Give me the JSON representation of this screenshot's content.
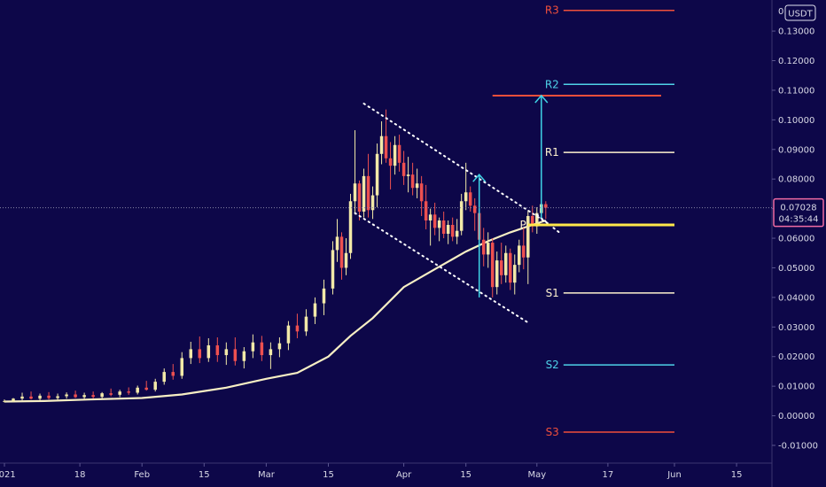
{
  "chart_data": {
    "type": "candlestick",
    "currency": "USDT",
    "last_price_label": "0.07028",
    "countdown": "04:35:44",
    "colors": {
      "background": "#0d0749",
      "up_candle": "#f2e9a8",
      "down_candle": "#ee5050",
      "moving_average": "#f7efc4",
      "channel": "#ffffff",
      "arrow": "#3fd4e6",
      "resistance": "#f04f3b",
      "r2": "#4ed2e8",
      "neutral_level": "#fff3cf",
      "pivot_line": "#ffe84a",
      "last_price": "#f06ba3"
    },
    "y_axis": {
      "range": [
        -0.0115,
        0.1405
      ],
      "ticks": [
        "0.13000",
        "0.12000",
        "0.11000",
        "0.10000",
        "0.09000",
        "0.08000",
        "0.07000",
        "0.06000",
        "0.05000",
        "0.04000",
        "0.03000",
        "0.02000",
        "0.01000",
        "0.00000",
        "-0.01000"
      ],
      "top_partial_label": "0"
    },
    "x_axis": {
      "labels": [
        {
          "date": "2021-01-01",
          "text": "2021"
        },
        {
          "date": "2021-01-18",
          "text": "18"
        },
        {
          "date": "2021-02-01",
          "text": "Feb"
        },
        {
          "date": "2021-02-15",
          "text": "15"
        },
        {
          "date": "2021-03-01",
          "text": "Mar"
        },
        {
          "date": "2021-03-15",
          "text": "15"
        },
        {
          "date": "2021-04-01",
          "text": "Apr"
        },
        {
          "date": "2021-04-15",
          "text": "15"
        },
        {
          "date": "2021-05-01",
          "text": "May"
        },
        {
          "date": "2021-05-17",
          "text": "17"
        },
        {
          "date": "2021-06-01",
          "text": "Jun"
        },
        {
          "date": "2021-06-15",
          "text": "15"
        }
      ]
    },
    "pivot_levels": [
      {
        "label": "R3",
        "value": 0.137,
        "start": "2021-05-07",
        "end": "2021-06-01",
        "color": "#f04f3b"
      },
      {
        "label": "R2",
        "value": 0.112,
        "start": "2021-05-07",
        "end": "2021-06-01",
        "color": "#4ed2e8"
      },
      {
        "label": "R1",
        "value": 0.089,
        "start": "2021-05-07",
        "end": "2021-06-01",
        "color": "#fff3cf"
      },
      {
        "label": "P",
        "value": 0.0645,
        "start": "2021-04-29",
        "end": "2021-06-01",
        "color": "#ffe84a"
      },
      {
        "label": "S1",
        "value": 0.0415,
        "start": "2021-05-07",
        "end": "2021-06-01",
        "color": "#fff3cf"
      },
      {
        "label": "S2",
        "value": 0.0172,
        "start": "2021-05-07",
        "end": "2021-06-01",
        "color": "#4ed2e8"
      },
      {
        "label": "S3",
        "value": -0.0055,
        "start": "2021-05-07",
        "end": "2021-06-01",
        "color": "#f04f3b"
      }
    ],
    "target_line": {
      "value": 0.1082,
      "start": "2021-04-21",
      "end": "2021-05-29"
    },
    "channel": {
      "upper": [
        {
          "date": "2021-03-23",
          "value": 0.1055
        },
        {
          "date": "2021-05-04",
          "value": 0.0645
        }
      ],
      "lower": [
        {
          "date": "2021-03-21",
          "value": 0.0685
        },
        {
          "date": "2021-04-29",
          "value": 0.0315
        }
      ],
      "breakout": [
        {
          "date": "2021-05-01",
          "value": 0.068
        },
        {
          "date": "2021-05-06",
          "value": 0.062
        }
      ]
    },
    "arrows": [
      {
        "date": "2021-04-18",
        "from": 0.04,
        "to": 0.0815
      },
      {
        "date": "2021-05-02",
        "from": 0.0668,
        "to": 0.1082
      }
    ],
    "moving_average": [
      [
        "2021-01-01",
        0.0048
      ],
      [
        "2021-01-10",
        0.005
      ],
      [
        "2021-01-20",
        0.0055
      ],
      [
        "2021-02-01",
        0.006
      ],
      [
        "2021-02-10",
        0.0072
      ],
      [
        "2021-02-20",
        0.0095
      ],
      [
        "2021-03-01",
        0.0125
      ],
      [
        "2021-03-08",
        0.0145
      ],
      [
        "2021-03-15",
        0.02
      ],
      [
        "2021-03-20",
        0.027
      ],
      [
        "2021-03-25",
        0.033
      ],
      [
        "2021-04-01",
        0.0435
      ],
      [
        "2021-04-08",
        0.0495
      ],
      [
        "2021-04-15",
        0.0555
      ],
      [
        "2021-04-20",
        0.059
      ],
      [
        "2021-04-25",
        0.062
      ],
      [
        "2021-04-30",
        0.0645
      ],
      [
        "2021-05-03",
        0.066
      ]
    ],
    "candles": [
      [
        "2021-01-01",
        0.0048,
        0.0055,
        0.0045,
        0.005
      ],
      [
        "2021-01-03",
        0.005,
        0.006,
        0.0046,
        0.0058
      ],
      [
        "2021-01-05",
        0.0058,
        0.0078,
        0.0052,
        0.0065
      ],
      [
        "2021-01-07",
        0.0065,
        0.0082,
        0.0055,
        0.0058
      ],
      [
        "2021-01-09",
        0.0058,
        0.0075,
        0.0052,
        0.0068
      ],
      [
        "2021-01-11",
        0.0068,
        0.008,
        0.0055,
        0.006
      ],
      [
        "2021-01-13",
        0.006,
        0.0075,
        0.0052,
        0.0066
      ],
      [
        "2021-01-15",
        0.0066,
        0.0079,
        0.0058,
        0.0072
      ],
      [
        "2021-01-17",
        0.0072,
        0.0085,
        0.006,
        0.0063
      ],
      [
        "2021-01-19",
        0.0063,
        0.0078,
        0.0055,
        0.007
      ],
      [
        "2021-01-21",
        0.007,
        0.0082,
        0.0058,
        0.0064
      ],
      [
        "2021-01-23",
        0.0064,
        0.008,
        0.0058,
        0.0076
      ],
      [
        "2021-01-25",
        0.0076,
        0.0092,
        0.0066,
        0.0071
      ],
      [
        "2021-01-27",
        0.0071,
        0.0088,
        0.0063,
        0.0082
      ],
      [
        "2021-01-29",
        0.0082,
        0.0096,
        0.0071,
        0.0078
      ],
      [
        "2021-01-31",
        0.0078,
        0.0102,
        0.0072,
        0.0095
      ],
      [
        "2021-02-02",
        0.0095,
        0.0118,
        0.0085,
        0.0088
      ],
      [
        "2021-02-04",
        0.0088,
        0.0125,
        0.0082,
        0.0115
      ],
      [
        "2021-02-06",
        0.0115,
        0.016,
        0.0105,
        0.0148
      ],
      [
        "2021-02-08",
        0.0148,
        0.0175,
        0.0122,
        0.0135
      ],
      [
        "2021-02-10",
        0.0135,
        0.0215,
        0.0125,
        0.0195
      ],
      [
        "2021-02-12",
        0.0195,
        0.025,
        0.0175,
        0.0225
      ],
      [
        "2021-02-14",
        0.0225,
        0.0268,
        0.0178,
        0.0195
      ],
      [
        "2021-02-16",
        0.0195,
        0.0262,
        0.0182,
        0.0238
      ],
      [
        "2021-02-18",
        0.0238,
        0.0265,
        0.0182,
        0.0205
      ],
      [
        "2021-02-20",
        0.0205,
        0.0248,
        0.0172,
        0.0225
      ],
      [
        "2021-02-22",
        0.0225,
        0.0265,
        0.017,
        0.0185
      ],
      [
        "2021-02-24",
        0.0185,
        0.0232,
        0.016,
        0.0218
      ],
      [
        "2021-02-26",
        0.0218,
        0.0275,
        0.0195,
        0.0248
      ],
      [
        "2021-02-28",
        0.0248,
        0.027,
        0.0185,
        0.0205
      ],
      [
        "2021-03-02",
        0.0205,
        0.0248,
        0.0158,
        0.0225
      ],
      [
        "2021-03-04",
        0.0225,
        0.0265,
        0.0198,
        0.0245
      ],
      [
        "2021-03-06",
        0.0245,
        0.032,
        0.0222,
        0.0305
      ],
      [
        "2021-03-08",
        0.0305,
        0.0345,
        0.0262,
        0.0285
      ],
      [
        "2021-03-10",
        0.0285,
        0.036,
        0.027,
        0.0335
      ],
      [
        "2021-03-12",
        0.0335,
        0.04,
        0.031,
        0.038
      ],
      [
        "2021-03-14",
        0.038,
        0.046,
        0.034,
        0.043
      ],
      [
        "2021-03-16",
        0.043,
        0.059,
        0.041,
        0.056
      ],
      [
        "2021-03-17",
        0.056,
        0.0665,
        0.052,
        0.0605
      ],
      [
        "2021-03-18",
        0.0605,
        0.062,
        0.046,
        0.05
      ],
      [
        "2021-03-19",
        0.05,
        0.06,
        0.0475,
        0.055
      ],
      [
        "2021-03-20",
        0.055,
        0.075,
        0.053,
        0.0725
      ],
      [
        "2021-03-21",
        0.0725,
        0.0965,
        0.068,
        0.0785
      ],
      [
        "2021-03-22",
        0.0785,
        0.0795,
        0.066,
        0.069
      ],
      [
        "2021-03-23",
        0.069,
        0.0835,
        0.067,
        0.081
      ],
      [
        "2021-03-24",
        0.081,
        0.0885,
        0.067,
        0.0695
      ],
      [
        "2021-03-25",
        0.0695,
        0.0775,
        0.0665,
        0.0745
      ],
      [
        "2021-03-26",
        0.0745,
        0.092,
        0.0705,
        0.0885
      ],
      [
        "2021-03-27",
        0.0885,
        0.0995,
        0.085,
        0.0945
      ],
      [
        "2021-03-28",
        0.0945,
        0.1035,
        0.0855,
        0.087
      ],
      [
        "2021-03-29",
        0.087,
        0.0925,
        0.0765,
        0.0845
      ],
      [
        "2021-03-30",
        0.0845,
        0.0945,
        0.0815,
        0.0915
      ],
      [
        "2021-03-31",
        0.0915,
        0.095,
        0.0825,
        0.0855
      ],
      [
        "2021-04-01",
        0.0855,
        0.0895,
        0.078,
        0.081
      ],
      [
        "2021-04-02",
        0.081,
        0.0875,
        0.0755,
        0.0815
      ],
      [
        "2021-04-03",
        0.0815,
        0.0855,
        0.0745,
        0.077
      ],
      [
        "2021-04-04",
        0.077,
        0.0835,
        0.0735,
        0.0785
      ],
      [
        "2021-04-05",
        0.0785,
        0.081,
        0.0675,
        0.0725
      ],
      [
        "2021-04-06",
        0.0725,
        0.078,
        0.063,
        0.066
      ],
      [
        "2021-04-07",
        0.066,
        0.07,
        0.0575,
        0.068
      ],
      [
        "2021-04-08",
        0.068,
        0.072,
        0.061,
        0.0635
      ],
      [
        "2021-04-09",
        0.0635,
        0.067,
        0.059,
        0.066
      ],
      [
        "2021-04-10",
        0.066,
        0.069,
        0.06,
        0.0615
      ],
      [
        "2021-04-11",
        0.0615,
        0.066,
        0.058,
        0.0645
      ],
      [
        "2021-04-12",
        0.0645,
        0.067,
        0.059,
        0.0605
      ],
      [
        "2021-04-13",
        0.0605,
        0.0665,
        0.058,
        0.0625
      ],
      [
        "2021-04-14",
        0.0625,
        0.075,
        0.061,
        0.0725
      ],
      [
        "2021-04-15",
        0.0725,
        0.0855,
        0.0695,
        0.0755
      ],
      [
        "2021-04-16",
        0.0755,
        0.0775,
        0.069,
        0.071
      ],
      [
        "2021-04-17",
        0.071,
        0.0735,
        0.0625,
        0.0685
      ],
      [
        "2021-04-18",
        0.0685,
        0.0695,
        0.055,
        0.0595
      ],
      [
        "2021-04-19",
        0.0595,
        0.0635,
        0.0505,
        0.0545
      ],
      [
        "2021-04-20",
        0.0545,
        0.062,
        0.05,
        0.0585
      ],
      [
        "2021-04-21",
        0.0585,
        0.06,
        0.04,
        0.0435
      ],
      [
        "2021-04-22",
        0.0435,
        0.0555,
        0.041,
        0.0525
      ],
      [
        "2021-04-23",
        0.0525,
        0.0585,
        0.0445,
        0.0475
      ],
      [
        "2021-04-24",
        0.0475,
        0.0575,
        0.045,
        0.055
      ],
      [
        "2021-04-25",
        0.055,
        0.0565,
        0.0425,
        0.045
      ],
      [
        "2021-04-26",
        0.045,
        0.0545,
        0.041,
        0.051
      ],
      [
        "2021-04-27",
        0.051,
        0.0595,
        0.0485,
        0.0575
      ],
      [
        "2021-04-28",
        0.0575,
        0.0635,
        0.0495,
        0.0535
      ],
      [
        "2021-04-29",
        0.0535,
        0.0695,
        0.0445,
        0.0675
      ],
      [
        "2021-04-30",
        0.0675,
        0.071,
        0.062,
        0.064
      ],
      [
        "2021-05-01",
        0.064,
        0.0705,
        0.0615,
        0.0685
      ],
      [
        "2021-05-02",
        0.0685,
        0.0765,
        0.067,
        0.0715
      ],
      [
        "2021-05-03",
        0.0715,
        0.0725,
        0.0665,
        0.0703
      ]
    ]
  }
}
